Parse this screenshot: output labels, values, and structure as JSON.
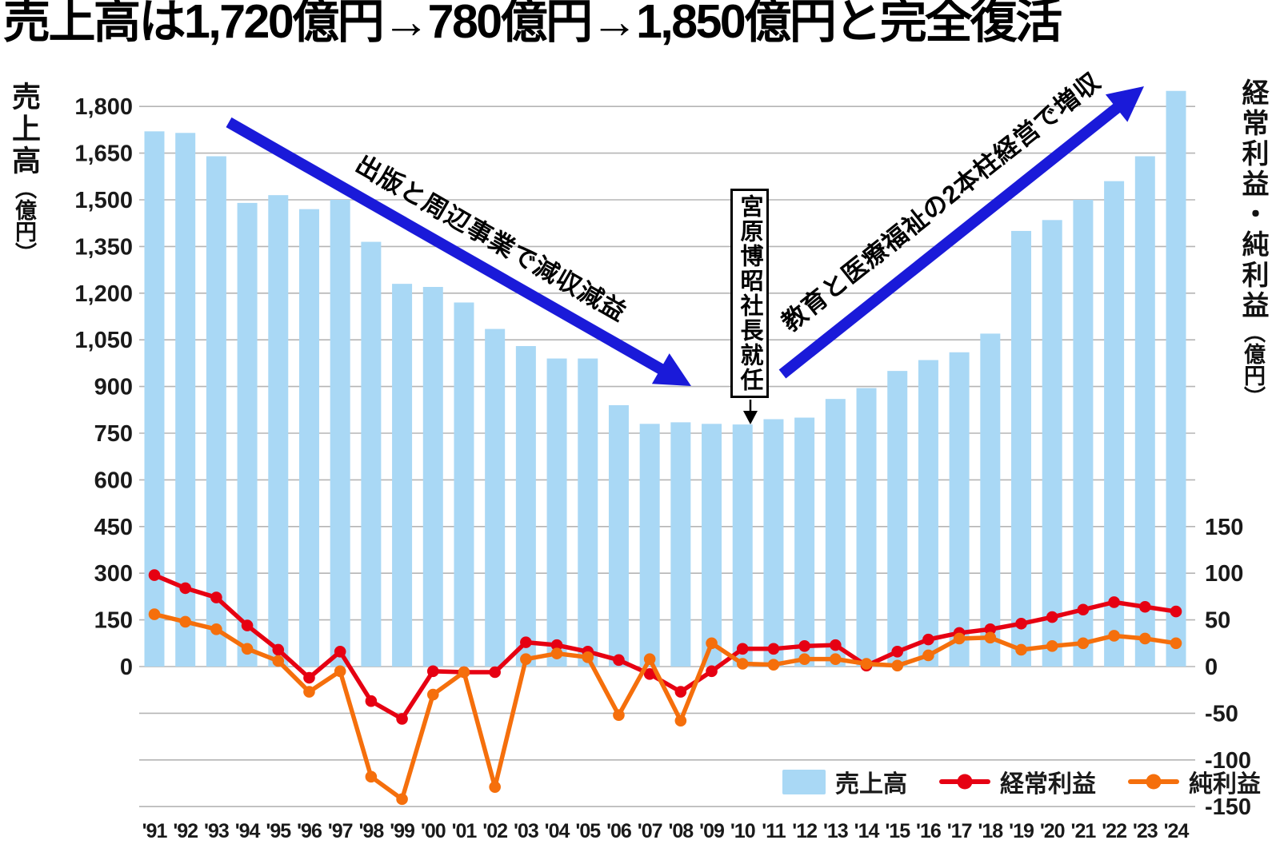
{
  "title": "売上高は1,720億円→780億円→1,850億円と完全復活",
  "left_axis_title_main": "売上高",
  "left_axis_title_unit": "（億円）",
  "right_axis_title_main": "経常利益・純利益",
  "right_axis_title_unit": "（億円）",
  "annotations": {
    "decline": "出版と周辺事業で減収減益",
    "growth": "教育と医療福祉の2本柱経営で増収",
    "president": "宮原博昭社長就任"
  },
  "legend": {
    "bar": "売上高",
    "ordinary": "経常利益",
    "net": "純利益"
  },
  "colors": {
    "bar_blue": "#a9d8f5",
    "ordinary_red": "#e60012",
    "net_orange": "#f56f0c",
    "arrow_blue": "#1a1ad9",
    "grid_gray": "#b5b5b5",
    "text_dark": "#1a1a1a"
  },
  "chart_data": {
    "type": "bar",
    "title": "売上高は1,720億円→780億円→1,850億円と完全復活",
    "categories": [
      "'91",
      "'92",
      "'93",
      "'94",
      "'95",
      "'96",
      "'97",
      "'98",
      "'99",
      "'00",
      "'01",
      "'02",
      "'03",
      "'04",
      "'05",
      "'06",
      "'07",
      "'08",
      "'09",
      "'10",
      "'11",
      "'12",
      "'13",
      "'14",
      "'15",
      "'16",
      "'17",
      "'18",
      "'19",
      "'20",
      "'21",
      "'22",
      "'23",
      "'24"
    ],
    "left_axis": {
      "label": "売上高（億円）",
      "min": 0,
      "max": 1800,
      "step": 150
    },
    "right_axis": {
      "label": "経常利益・純利益（億円）",
      "min": -150,
      "max": 150,
      "step": 50
    },
    "grid": true,
    "legend_position": "bottom-right",
    "series": [
      {
        "name": "売上高",
        "type": "bar",
        "axis": "left",
        "color": "#a9d8f5",
        "values": [
          1720,
          1715,
          1640,
          1490,
          1515,
          1470,
          1500,
          1365,
          1230,
          1220,
          1170,
          1085,
          1030,
          990,
          990,
          840,
          780,
          785,
          780,
          778,
          795,
          800,
          860,
          895,
          950,
          985,
          1010,
          1070,
          1400,
          1435,
          1500,
          1560,
          1640,
          1850
        ]
      },
      {
        "name": "経常利益",
        "type": "line",
        "axis": "right",
        "color": "#e60012",
        "values": [
          98,
          84,
          74,
          44,
          18,
          -12,
          16,
          -37,
          -56,
          -5,
          -6,
          -6,
          26,
          23,
          16,
          7,
          -8,
          -27,
          -5,
          19,
          19,
          22,
          23,
          1,
          16,
          29,
          36,
          40,
          46,
          53,
          61,
          69,
          64,
          59
        ]
      },
      {
        "name": "純利益",
        "type": "line",
        "axis": "right",
        "color": "#f56f0c",
        "values": [
          56,
          48,
          40,
          19,
          6,
          -27,
          -5,
          -118,
          -142,
          -30,
          -6,
          -129,
          8,
          14,
          10,
          -52,
          8,
          -58,
          25,
          3,
          2,
          8,
          8,
          3,
          1,
          12,
          30,
          31,
          18,
          22,
          25,
          33,
          30,
          25
        ]
      }
    ],
    "annotations": [
      {
        "text": "出版と周辺事業で減収減益",
        "type": "arrow-down-right"
      },
      {
        "text": "教育と医療福祉の2本柱経営で増収",
        "type": "arrow-up-right"
      },
      {
        "text": "宮原博昭社長就任",
        "type": "callout-box",
        "points_to": "'10"
      }
    ]
  }
}
